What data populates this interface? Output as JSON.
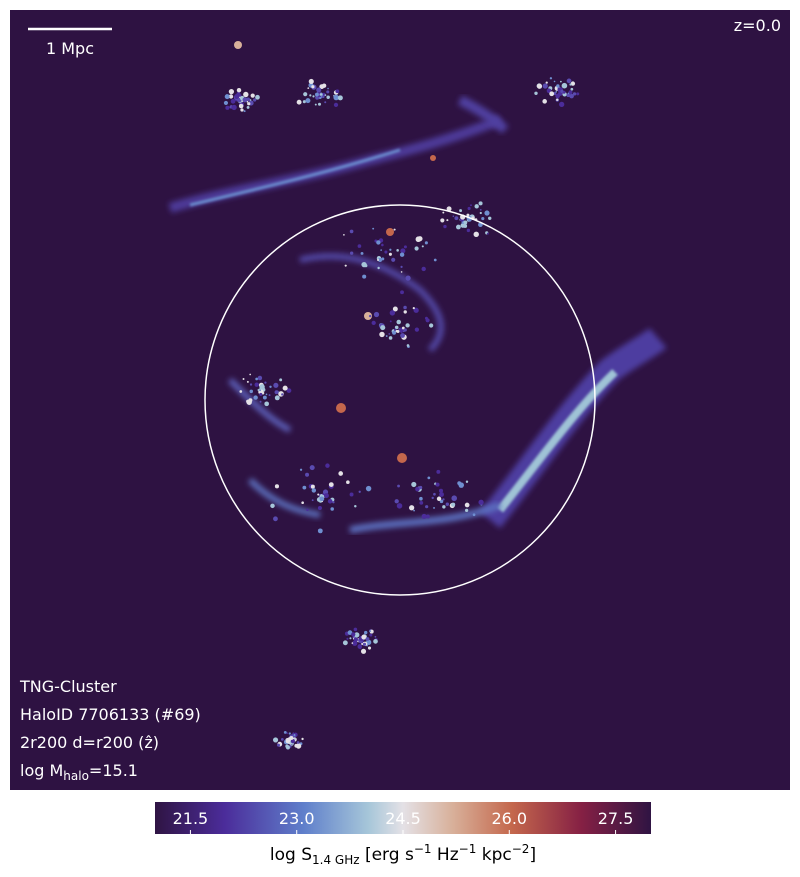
{
  "image": {
    "redshift": "z=0.0",
    "scale_bar": "1 Mpc",
    "info": [
      "TNG-Cluster",
      "HaloID 7706133 (#69)",
      "2r200 d=r200 (ẑ)"
    ],
    "mass": {
      "prefix": "log M",
      "sub": "halo",
      "suffix": "=15.1"
    }
  },
  "colorbar": {
    "lim": [
      21,
      28
    ],
    "ticks": [
      {
        "value": 21.5,
        "label": "21.5"
      },
      {
        "value": 23.0,
        "label": "23.0"
      },
      {
        "value": 24.5,
        "label": "24.5"
      },
      {
        "value": 26.0,
        "label": "26.0"
      },
      {
        "value": 27.5,
        "label": "27.5"
      }
    ],
    "label": {
      "main": "log S",
      "sub": "1.4 GHz",
      "unit1": " [erg s",
      "exp1": "−1",
      "unit2": " Hz",
      "exp2": "−1",
      "unit3": " kpc",
      "exp3": "−2",
      "end": "]"
    }
  }
}
